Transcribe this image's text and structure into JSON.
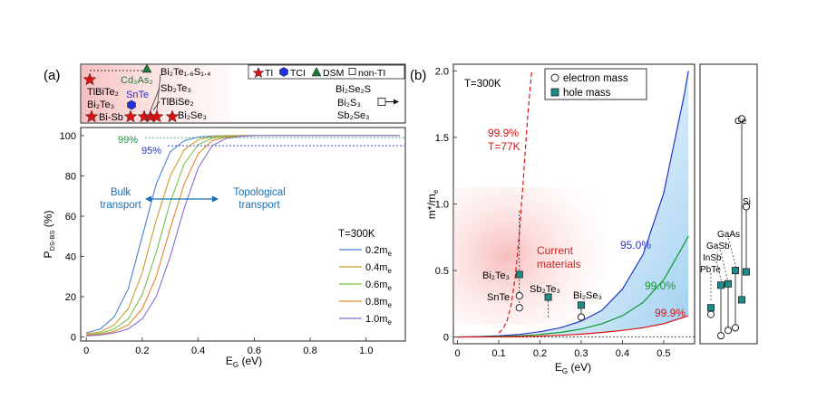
{
  "colors": {
    "blue": "#2233cc",
    "red": "#dd1111",
    "green": "#119933",
    "teal": "#1a8f8a",
    "steel": "#1a6fb0",
    "dot": "#3344dd",
    "series": [
      "#4a7fd0",
      "#c8a030",
      "#7ac04a",
      "#e08a2a",
      "#8a6ad0"
    ]
  },
  "panel_a": {
    "label": "(a)",
    "legend": {
      "ti": "TI",
      "tci": "TCI",
      "dsm": "DSM",
      "nonti": "non-TI"
    },
    "materials": {
      "tlbite2": "TlBiTe₂",
      "bi2te3": "Bi₂Te₃",
      "bisb": "Bi-Sb",
      "snte": "SnTe",
      "cd3as2": "Cd₃As₂",
      "bi2te16s14": "Bi₂Te₁.₆S₁.₄",
      "sb2te3": "Sb₂Te₃",
      "tlbise2": "TlBiSe₂",
      "bi2se3": "Bi₂Se₃",
      "bi2se2s": "Bi₂Se₂S",
      "bi2s3": "Bi₂S₃",
      "sb2se3": "Sb₂Se₃"
    },
    "thresholds": {
      "p99": "99%",
      "p95": "95%"
    },
    "annotations": {
      "bulk": [
        "Bulk",
        "transport"
      ],
      "topo": [
        "Topological",
        "transport"
      ]
    },
    "legend_title": "T=300K"
  },
  "panel_b": {
    "label": "(b)",
    "temp": "T=300K",
    "legend": {
      "electron": "electron mass",
      "hole": "hole mass"
    },
    "curve_labels": {
      "c95": "95.0%",
      "c99": "99.0%",
      "c999": "99.9%",
      "c77a": "99.9%",
      "c77b": "T=77K"
    },
    "current": [
      "Current",
      "materials"
    ],
    "points": {
      "bi2te3": "Bi₂Te₃",
      "snte": "SnTe",
      "sb2te3": "Sb₂Te₃",
      "bi2se3": "Bi₂Se₃"
    },
    "side": {
      "ge": "Ge",
      "si": "Si",
      "gaas": "GaAs",
      "gasb": "GaSb",
      "insb": "InSb",
      "pbte": "PbTe"
    }
  },
  "chart_data": [
    {
      "type": "line",
      "title": "",
      "xlabel": "E_G (eV)",
      "ylabel": "P_DS-BS (%)",
      "xlim": [
        -0.02,
        1.14
      ],
      "ylim": [
        -2,
        104
      ],
      "xticks": [
        "0",
        "0.2",
        "0.4",
        "0.6",
        "0.8",
        "1.0"
      ],
      "yticks": [
        "0",
        "20",
        "40",
        "60",
        "80",
        "100"
      ],
      "legend_title": "T=300K",
      "series": [
        {
          "name": "0.2m_e",
          "x": [
            0,
            0.05,
            0.1,
            0.15,
            0.2,
            0.25,
            0.3,
            0.35,
            0.4,
            0.45,
            0.5,
            0.55,
            0.6,
            1.12
          ],
          "values": [
            2,
            4,
            10,
            24,
            50,
            76,
            92,
            97.5,
            99.3,
            99.8,
            100,
            100,
            100,
            100
          ]
        },
        {
          "name": "0.4m_e",
          "x": [
            0,
            0.05,
            0.1,
            0.15,
            0.2,
            0.25,
            0.3,
            0.35,
            0.4,
            0.45,
            0.5,
            0.55,
            0.6,
            1.12
          ],
          "values": [
            1.5,
            2.5,
            6,
            14,
            32,
            58,
            80,
            93,
            98,
            99.5,
            100,
            100,
            100,
            100
          ]
        },
        {
          "name": "0.6m_e",
          "x": [
            0,
            0.05,
            0.1,
            0.15,
            0.2,
            0.25,
            0.3,
            0.35,
            0.4,
            0.45,
            0.5,
            0.55,
            0.6,
            1.12
          ],
          "values": [
            1,
            1.8,
            4,
            9,
            21,
            42,
            67,
            86,
            95.5,
            98.8,
            99.7,
            100,
            100,
            100
          ]
        },
        {
          "name": "0.8m_e",
          "x": [
            0,
            0.05,
            0.1,
            0.15,
            0.2,
            0.25,
            0.3,
            0.35,
            0.4,
            0.45,
            0.5,
            0.55,
            0.6,
            1.12
          ],
          "values": [
            0.8,
            1.3,
            2.8,
            6,
            14,
            30,
            54,
            76,
            91,
            97.5,
            99.3,
            99.8,
            100,
            100
          ]
        },
        {
          "name": "1.0m_e",
          "x": [
            0,
            0.05,
            0.1,
            0.15,
            0.2,
            0.25,
            0.3,
            0.35,
            0.4,
            0.45,
            0.5,
            0.55,
            0.6,
            1.12
          ],
          "values": [
            0.5,
            1,
            2,
            4,
            9,
            20,
            40,
            64,
            84,
            95,
            98.6,
            99.6,
            100,
            100
          ]
        }
      ]
    },
    {
      "type": "line",
      "title": "",
      "xlabel": "E_G (eV)",
      "ylabel": "m*/m_e",
      "xlim": [
        -0.01,
        0.575
      ],
      "ylim": [
        -0.05,
        2.05
      ],
      "xticks": [
        "0",
        "0.1",
        "0.2",
        "0.3",
        "0.4",
        "0.5"
      ],
      "yticks": [
        "0",
        "0.5",
        "1.0",
        "1.5",
        "2.0"
      ],
      "series": [
        {
          "name": "95.0%",
          "x": [
            0,
            0.05,
            0.1,
            0.15,
            0.2,
            0.25,
            0.3,
            0.35,
            0.4,
            0.45,
            0.5,
            0.55,
            0.56
          ],
          "values": [
            0.001,
            0.004,
            0.01,
            0.02,
            0.04,
            0.07,
            0.12,
            0.2,
            0.36,
            0.62,
            1.08,
            1.82,
            2.0
          ]
        },
        {
          "name": "99.0%",
          "x": [
            0,
            0.05,
            0.1,
            0.15,
            0.2,
            0.25,
            0.3,
            0.35,
            0.4,
            0.45,
            0.5,
            0.55,
            0.56
          ],
          "values": [
            0.0005,
            0.002,
            0.005,
            0.01,
            0.02,
            0.035,
            0.06,
            0.1,
            0.16,
            0.26,
            0.43,
            0.7,
            0.76
          ]
        },
        {
          "name": "99.9%",
          "x": [
            0,
            0.05,
            0.1,
            0.15,
            0.2,
            0.25,
            0.3,
            0.35,
            0.4,
            0.45,
            0.5,
            0.55,
            0.56
          ],
          "values": [
            0.0003,
            0.001,
            0.002,
            0.004,
            0.008,
            0.013,
            0.022,
            0.035,
            0.05,
            0.07,
            0.1,
            0.15,
            0.16
          ]
        },
        {
          "name": "99.9% T=77K",
          "x": [
            0.1,
            0.11,
            0.12,
            0.13,
            0.14,
            0.15,
            0.16,
            0.17,
            0.18
          ],
          "values": [
            0.03,
            0.06,
            0.12,
            0.24,
            0.45,
            0.78,
            1.2,
            1.65,
            2.0
          ]
        }
      ],
      "points": [
        {
          "name": "Bi₂Te₃",
          "x": 0.15,
          "electron": null,
          "hole": 0.47
        },
        {
          "name": "SnTe",
          "x": 0.15,
          "electron": 0.31,
          "hole": null
        },
        {
          "name": "SnTe-2",
          "x": 0.15,
          "electron": 0.22,
          "hole": null
        },
        {
          "name": "Sb₂Te₃",
          "x": 0.22,
          "electron": null,
          "hole": 0.3
        },
        {
          "name": "Bi₂Se₃",
          "x": 0.3,
          "electron": 0.15,
          "hole": 0.24
        }
      ],
      "side_points": [
        {
          "name": "PbTe",
          "electron": 0.17,
          "hole": 0.22
        },
        {
          "name": "InSb",
          "electron": 0.01,
          "hole": 0.39
        },
        {
          "name": "GaSb",
          "electron": 0.05,
          "hole": 0.4
        },
        {
          "name": "GaAs",
          "electron": 0.07,
          "hole": 0.5
        },
        {
          "name": "Ge",
          "electron": 1.64,
          "hole": 0.28
        },
        {
          "name": "Si",
          "electron": 0.98,
          "hole": 0.49
        }
      ]
    }
  ]
}
